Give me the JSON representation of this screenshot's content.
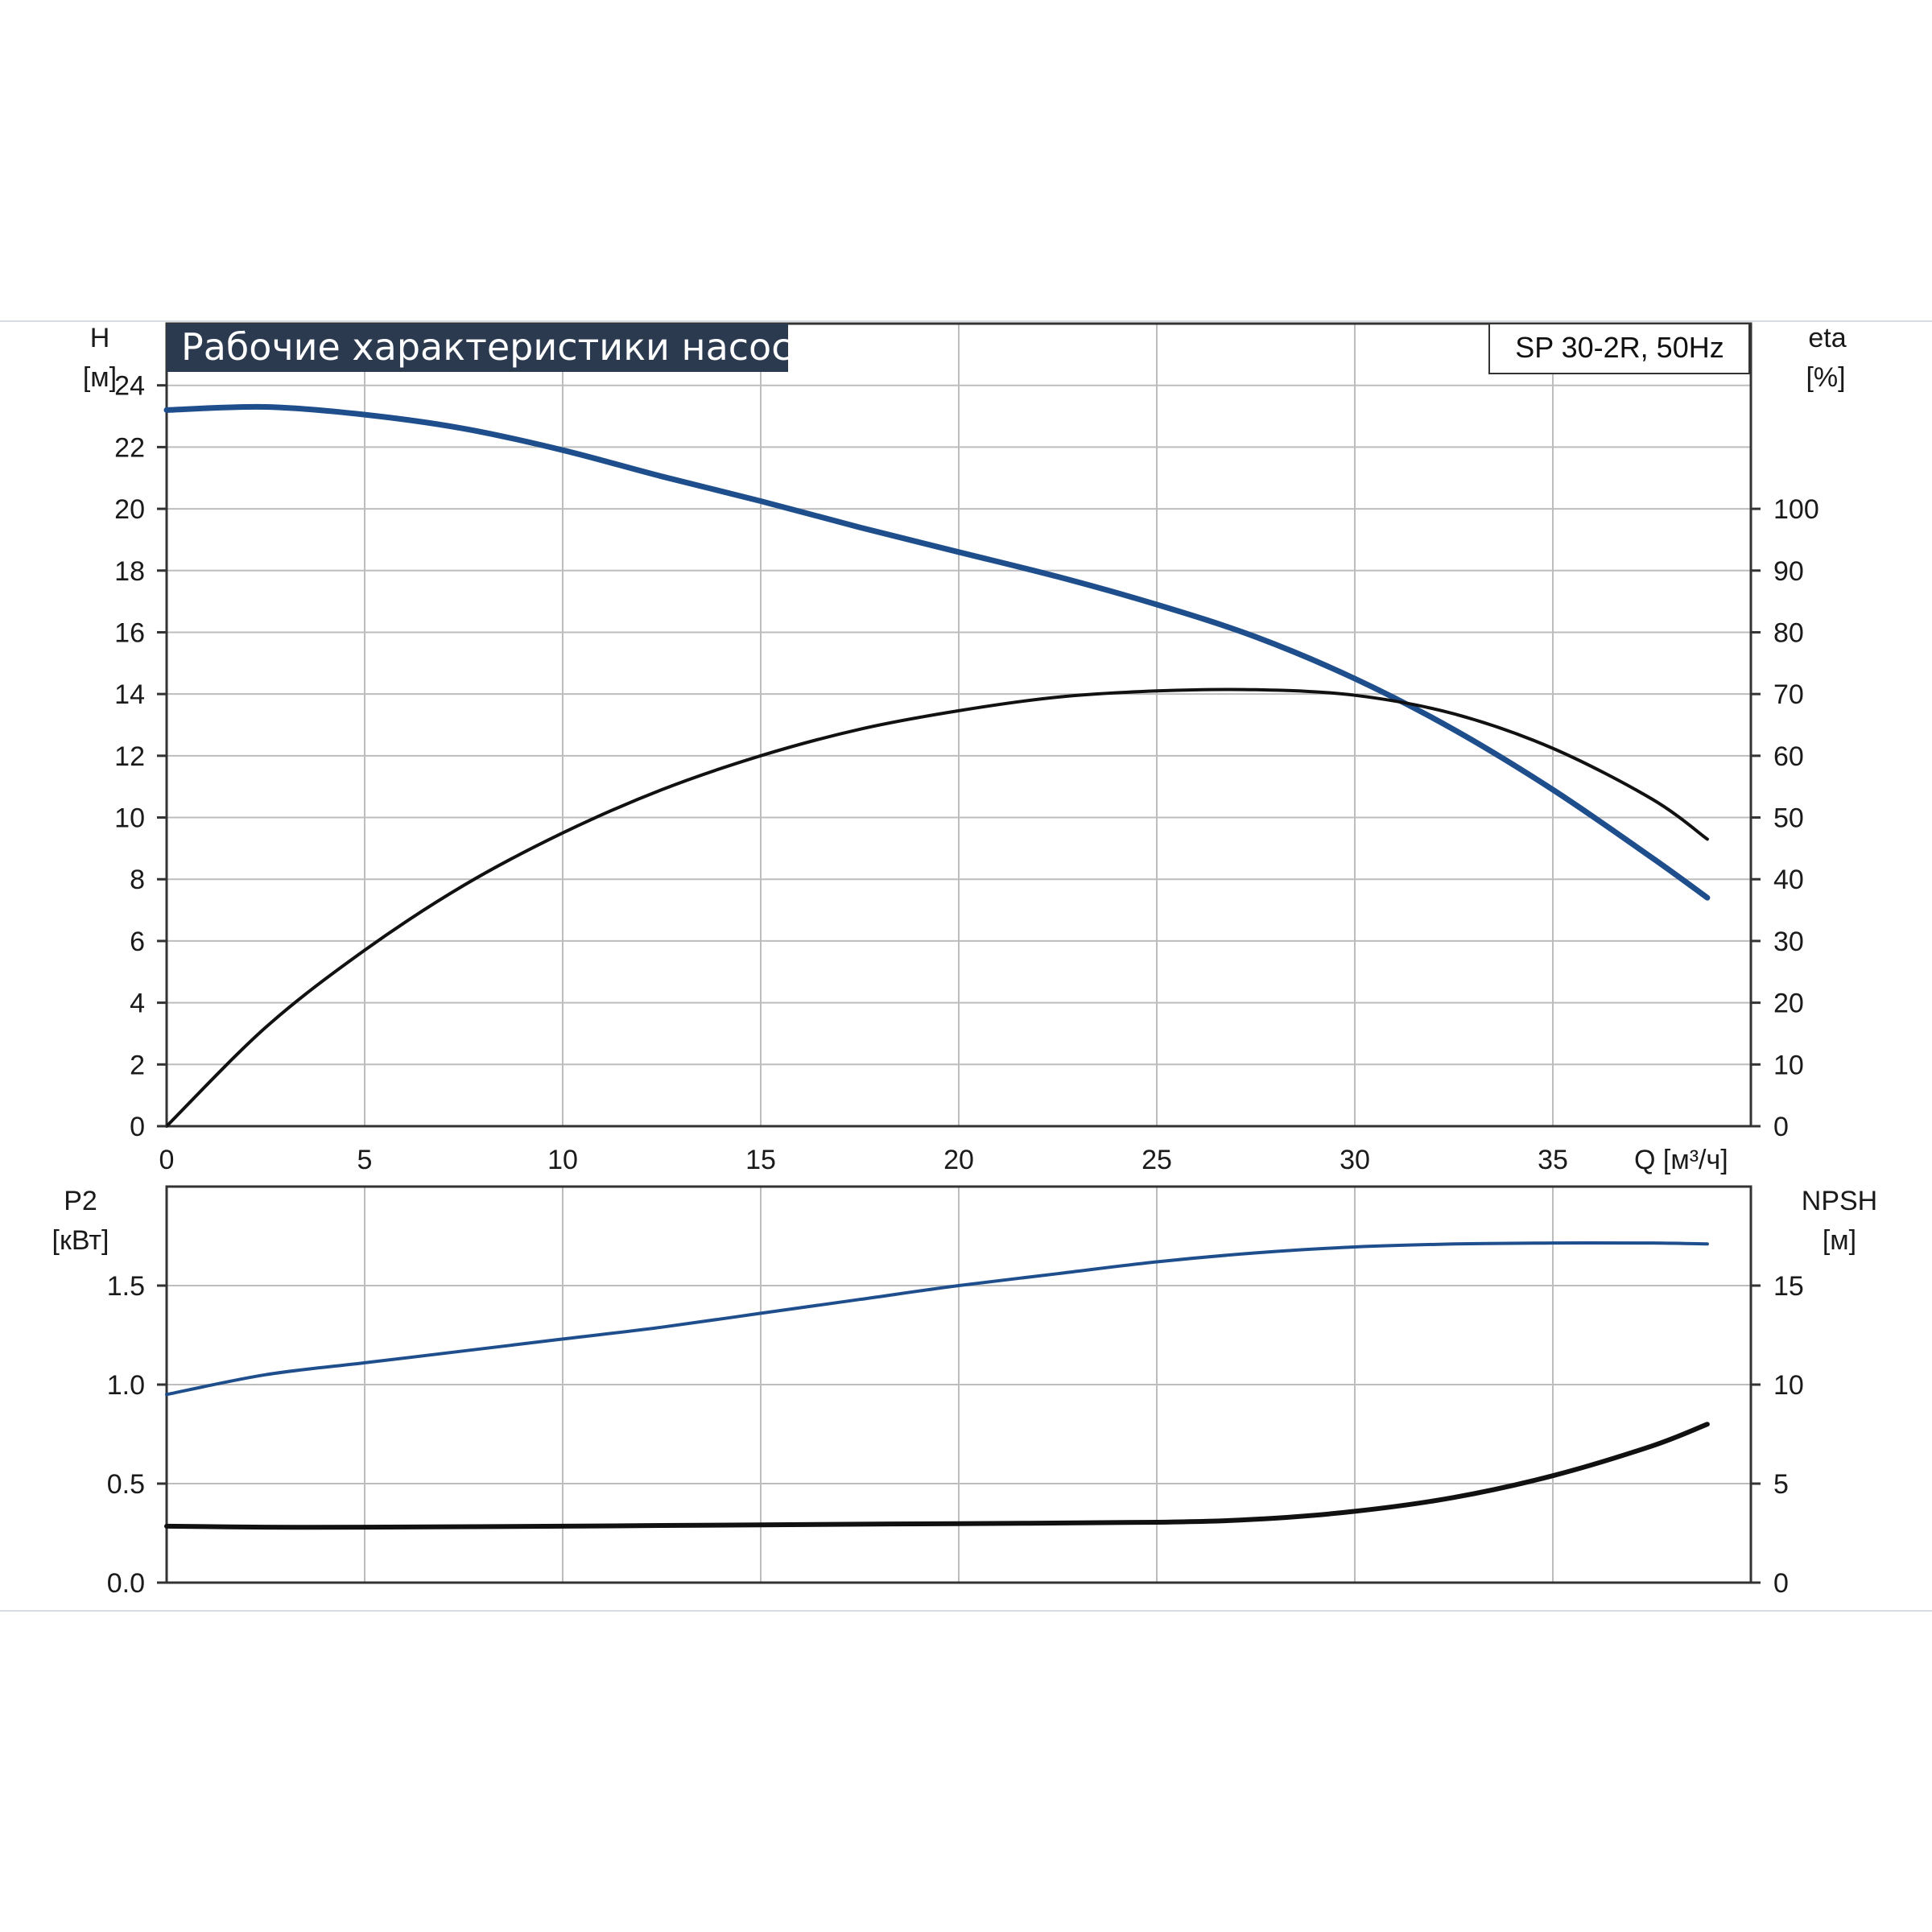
{
  "chart_data": [
    {
      "type": "line",
      "title": "Рабочие характеристики насоса",
      "model_label": "SP 30-2R, 50Hz",
      "xlabel": "Q [м³/ч]",
      "xlim": [
        0,
        40
      ],
      "x_ticks": [
        "0",
        "5",
        "10",
        "15",
        "20",
        "25",
        "30",
        "35"
      ],
      "y_left": {
        "label": "H",
        "unit": "[м]",
        "ylim": [
          0,
          26
        ],
        "ticks": [
          "0",
          "2",
          "4",
          "6",
          "8",
          "10",
          "12",
          "14",
          "16",
          "18",
          "20",
          "22",
          "24"
        ]
      },
      "y_right": {
        "label": "eta",
        "unit": "[%]",
        "ylim": [
          0,
          130
        ],
        "ticks": [
          "0",
          "10",
          "20",
          "30",
          "40",
          "50",
          "60",
          "70",
          "80",
          "90",
          "100"
        ]
      },
      "grid": true,
      "series": [
        {
          "axis": "left",
          "color": "#1f4e8c",
          "x": [
            0,
            2.5,
            5,
            7.5,
            10,
            12.5,
            15,
            17.5,
            20,
            22.5,
            25,
            27.5,
            30,
            32.5,
            35,
            37.5,
            38.9
          ],
          "y": [
            23.2,
            23.3,
            23.05,
            22.6,
            21.9,
            21.05,
            20.25,
            19.4,
            18.6,
            17.8,
            16.9,
            15.85,
            14.5,
            12.85,
            10.9,
            8.7,
            7.4
          ]
        },
        {
          "axis": "right",
          "color": "#111111",
          "x": [
            0,
            2.5,
            5,
            7.5,
            10,
            12.5,
            15,
            17.5,
            20,
            22.5,
            25,
            27.5,
            30,
            32.5,
            35,
            37.5,
            38.9
          ],
          "y": [
            0,
            16,
            28.5,
            39,
            47.5,
            54.5,
            60,
            64.3,
            67.3,
            69.5,
            70.5,
            70.7,
            69.8,
            66.8,
            61.2,
            53,
            46.5
          ]
        }
      ]
    },
    {
      "type": "line",
      "xlim": [
        0,
        40
      ],
      "y_left": {
        "label": "P2",
        "unit": "[кВт]",
        "ylim": [
          0,
          2
        ],
        "ticks": [
          "0.0",
          "0.5",
          "1.0",
          "1.5"
        ]
      },
      "y_right": {
        "label": "NPSH",
        "unit": "[м]",
        "ylim": [
          0,
          20
        ],
        "ticks": [
          "0",
          "5",
          "10",
          "15"
        ]
      },
      "grid": true,
      "series": [
        {
          "axis": "left",
          "color": "#1f4e8c",
          "x": [
            0,
            2.5,
            5,
            7.5,
            10,
            12.5,
            15,
            17.5,
            20,
            22.5,
            25,
            27.5,
            30,
            32.5,
            35,
            37.5,
            38.9
          ],
          "y": [
            0.95,
            1.05,
            1.11,
            1.17,
            1.23,
            1.29,
            1.36,
            1.43,
            1.5,
            1.56,
            1.62,
            1.665,
            1.695,
            1.71,
            1.715,
            1.715,
            1.71
          ]
        },
        {
          "axis": "right",
          "color": "#111111",
          "x": [
            0,
            2.5,
            5,
            10,
            15,
            20,
            25,
            27.5,
            30,
            32.5,
            35,
            37.5,
            38.9
          ],
          "y": [
            2.85,
            2.8,
            2.8,
            2.85,
            2.92,
            2.98,
            3.05,
            3.2,
            3.6,
            4.3,
            5.4,
            6.9,
            8.0
          ]
        }
      ]
    }
  ]
}
